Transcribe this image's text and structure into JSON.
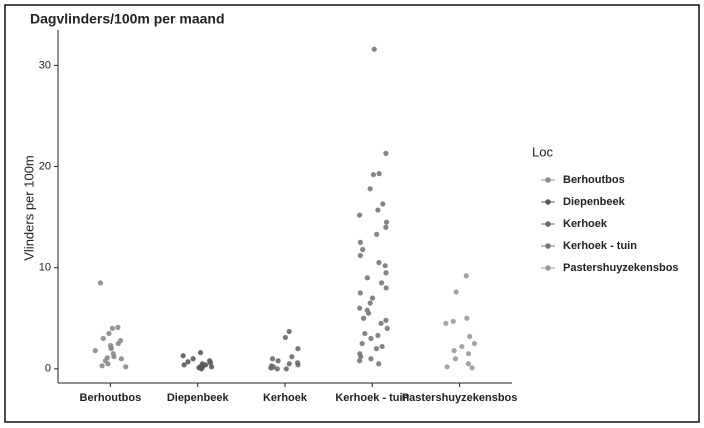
{
  "chart_data": {
    "type": "strip",
    "title": "Dagvlinders/100m per maand",
    "ylabel": "Vlinders per 100m",
    "legend_title": "Loc",
    "categories": [
      "Berhoutbos",
      "Diepenbeek",
      "Kerhoek",
      "Kerhoek - tuin",
      "Pastershuyzekensbos"
    ],
    "ylim": [
      -1.4,
      33.5
    ],
    "yticks": [
      0,
      10,
      20,
      30
    ],
    "series": [
      {
        "name": "Berhoutbos",
        "color": "#8a8a8a",
        "values": [
          8.5,
          4.1,
          4.0,
          3.5,
          3.0,
          2.8,
          2.5,
          2.3,
          2.1,
          2.0,
          1.8,
          1.5,
          1.2,
          1.1,
          1.0,
          0.8,
          0.5,
          0.3,
          0.2
        ]
      },
      {
        "name": "Diepenbeek",
        "color": "#5a5a5a",
        "values": [
          1.6,
          1.3,
          1.0,
          0.8,
          0.7,
          0.6,
          0.5,
          0.4,
          0.4,
          0.3,
          0.2,
          0.2,
          0.1,
          0.1,
          0.0
        ]
      },
      {
        "name": "Kerhoek",
        "color": "#6a6a6a",
        "values": [
          3.7,
          3.1,
          2.0,
          1.2,
          1.0,
          0.8,
          0.6,
          0.5,
          0.4,
          0.3,
          0.2,
          0.1,
          0.1,
          0.0,
          0.0
        ]
      },
      {
        "name": "Kerhoek - tuin",
        "color": "#777777",
        "values": [
          31.6,
          21.3,
          19.3,
          19.2,
          17.8,
          16.3,
          15.7,
          15.2,
          14.5,
          14.0,
          13.3,
          12.5,
          11.8,
          11.2,
          10.5,
          10.2,
          9.5,
          9.0,
          8.5,
          8.0,
          7.5,
          7.0,
          6.5,
          6.0,
          5.8,
          5.5,
          5.0,
          4.8,
          4.5,
          4.0,
          3.5,
          3.3,
          3.0,
          2.5,
          2.2,
          2.0,
          1.5,
          1.2,
          1.0,
          0.8,
          0.5
        ]
      },
      {
        "name": "Pastershuyzekensbos",
        "color": "#9a9a9a",
        "values": [
          9.2,
          7.6,
          5.0,
          4.7,
          4.5,
          3.2,
          2.5,
          2.2,
          1.8,
          1.5,
          1.0,
          0.5,
          0.2,
          0.1
        ]
      }
    ]
  }
}
